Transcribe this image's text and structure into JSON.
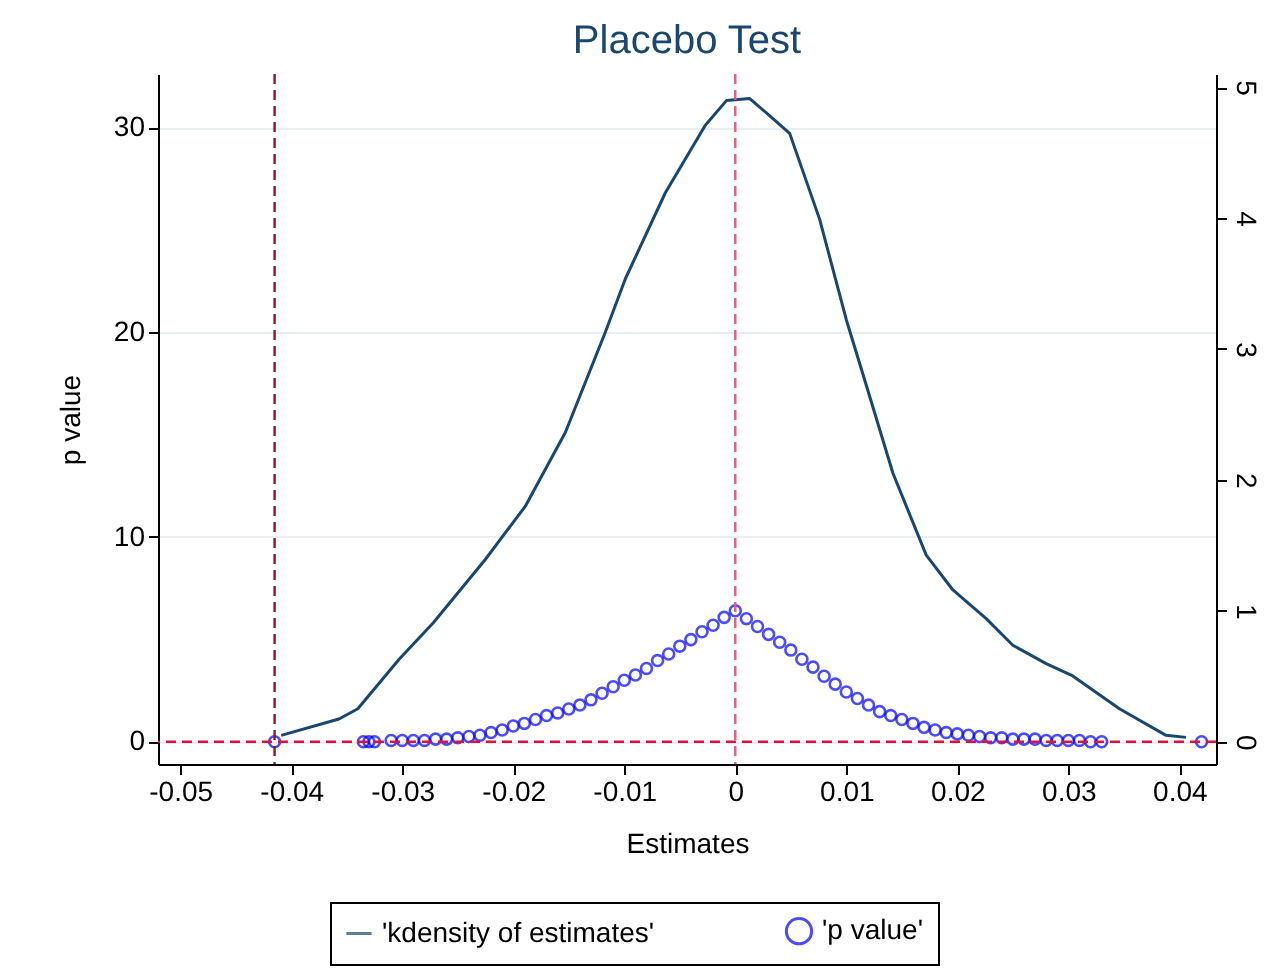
{
  "chart_data": {
    "type": "line",
    "title": "Placebo Test",
    "xlabel": "Estimates",
    "ylabel": "p value",
    "xlim": [
      -0.052,
      0.0433
    ],
    "xticks": [
      -0.05,
      -0.04,
      -0.03,
      -0.02,
      -0.01,
      0,
      0.01,
      0.02,
      0.03,
      0.04
    ],
    "ylim": [
      -1.1,
      32.6
    ],
    "yticks": [
      0,
      10,
      20,
      30
    ],
    "y2lim": [
      -0.17,
      5.1
    ],
    "y2ticks": [
      0,
      1,
      2,
      3,
      4,
      5
    ],
    "grid": "y",
    "legend": "bottom",
    "series": [
      {
        "name": "'kdensity of estimates'",
        "color": "#1a476f",
        "marker": "none",
        "x": [
          -0.0409,
          -0.0357,
          -0.034,
          -0.0303,
          -0.0272,
          -0.0225,
          -0.0189,
          -0.0153,
          -0.0117,
          -0.0099,
          -0.0063,
          -0.0027,
          -0.0008,
          0.0013,
          0.0028,
          0.0049,
          0.0076,
          0.01,
          0.0118,
          0.0142,
          0.0172,
          0.0196,
          0.0226,
          0.025,
          0.028,
          0.0304,
          0.0346,
          0.0388,
          0.0406
        ],
        "values": [
          0.3,
          1.1,
          1.6,
          4.0,
          5.8,
          8.9,
          11.5,
          15.1,
          20.0,
          22.6,
          26.8,
          30.1,
          31.3,
          31.4,
          30.7,
          29.7,
          25.5,
          20.6,
          17.4,
          13.1,
          9.1,
          7.4,
          6.0,
          4.7,
          3.8,
          3.2,
          1.6,
          0.3,
          0.2
        ]
      },
      {
        "name": "'p value'",
        "type": "scatter",
        "axis": "y2",
        "color": "#0000ff",
        "marker": "circle",
        "x": [
          -0.0415,
          -0.0335,
          -0.033,
          -0.0325,
          -0.031,
          -0.03,
          -0.029,
          -0.028,
          -0.027,
          -0.026,
          -0.025,
          -0.024,
          -0.023,
          -0.022,
          -0.021,
          -0.02,
          -0.019,
          -0.018,
          -0.017,
          -0.016,
          -0.015,
          -0.014,
          -0.013,
          -0.012,
          -0.011,
          -0.01,
          -0.009,
          -0.008,
          -0.007,
          -0.006,
          -0.005,
          -0.004,
          -0.003,
          -0.002,
          -0.001,
          0,
          0.001,
          0.002,
          0.003,
          0.004,
          0.005,
          0.006,
          0.007,
          0.008,
          0.009,
          0.01,
          0.011,
          0.012,
          0.013,
          0.014,
          0.015,
          0.016,
          0.017,
          0.018,
          0.019,
          0.02,
          0.021,
          0.022,
          0.023,
          0.024,
          0.025,
          0.026,
          0.027,
          0.028,
          0.029,
          0.03,
          0.031,
          0.032,
          0.033,
          0.042
        ],
        "values": [
          0.0,
          0.0,
          0.0,
          0.0,
          0.01,
          0.01,
          0.01,
          0.01,
          0.02,
          0.02,
          0.03,
          0.04,
          0.05,
          0.07,
          0.09,
          0.12,
          0.14,
          0.17,
          0.2,
          0.22,
          0.25,
          0.28,
          0.32,
          0.37,
          0.42,
          0.47,
          0.51,
          0.56,
          0.62,
          0.67,
          0.73,
          0.78,
          0.84,
          0.89,
          0.95,
          1.0,
          0.94,
          0.88,
          0.82,
          0.76,
          0.7,
          0.63,
          0.57,
          0.5,
          0.44,
          0.38,
          0.33,
          0.28,
          0.23,
          0.2,
          0.17,
          0.14,
          0.11,
          0.09,
          0.07,
          0.06,
          0.05,
          0.04,
          0.03,
          0.03,
          0.02,
          0.02,
          0.02,
          0.01,
          0.01,
          0.01,
          0.01,
          0.0,
          0.0,
          0.0
        ]
      }
    ],
    "ref_lines": [
      {
        "axis": "x",
        "value": -0.0415,
        "color": "#8b1a2b",
        "line_style": "dashed"
      },
      {
        "axis": "x",
        "value": 0,
        "color": "#e06080",
        "line_style": "dashed"
      },
      {
        "axis": "y2",
        "value": 0,
        "color": "#e0103c",
        "line_style": "dashed"
      }
    ]
  }
}
